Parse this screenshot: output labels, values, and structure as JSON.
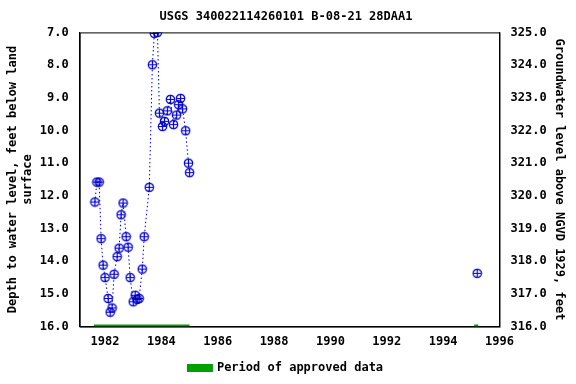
{
  "chart_data": {
    "type": "scatter",
    "title": "USGS 340022114260101 B-08-21 28DAA1",
    "x_label": "",
    "y_label": [
      "Depth to water level, feet below land",
      "surface"
    ],
    "y2_label": "Groundwater level above NGVD 1929, feet",
    "xlim": [
      1981.1,
      1996
    ],
    "xticks": [
      1982,
      1984,
      1986,
      1988,
      1990,
      1992,
      1994,
      1996
    ],
    "ylim": [
      16,
      7
    ],
    "yticks": [
      {
        "value": 7,
        "label": "7.0"
      },
      {
        "value": 8,
        "label": "8.0"
      },
      {
        "value": 9,
        "label": "9.0"
      },
      {
        "value": 10,
        "label": "10.0"
      },
      {
        "value": 11,
        "label": "11.0"
      },
      {
        "value": 12,
        "label": "12.0"
      },
      {
        "value": 13,
        "label": "13.0"
      },
      {
        "value": 14,
        "label": "14.0"
      },
      {
        "value": 15,
        "label": "15.0"
      },
      {
        "value": 16,
        "label": "16.0"
      }
    ],
    "y2lim": [
      316,
      325
    ],
    "y2ticks": [
      {
        "value": 316,
        "label": "316.0"
      },
      {
        "value": 317,
        "label": "317.0"
      },
      {
        "value": 318,
        "label": "318.0"
      },
      {
        "value": 319,
        "label": "319.0"
      },
      {
        "value": 320,
        "label": "320.0"
      },
      {
        "value": 321,
        "label": "321.0"
      },
      {
        "value": 322,
        "label": "322.0"
      },
      {
        "value": 323,
        "label": "323.0"
      },
      {
        "value": 324,
        "label": "324.0"
      },
      {
        "value": 325,
        "label": "325.0"
      }
    ],
    "grid": false,
    "legend": "bottom",
    "series": [
      {
        "color": "#0000cc",
        "marker": "circle_plus",
        "line_style": "dotted",
        "x": [
          1981.64,
          1981.71,
          1981.79,
          1981.86,
          1981.93,
          1982.0,
          1982.11,
          1982.18,
          1982.25,
          1982.32,
          1982.43,
          1982.5,
          1982.57,
          1982.64,
          1982.75,
          1982.82,
          1982.89,
          1983.0,
          1983.07,
          1983.14,
          1983.21,
          1983.32,
          1983.39,
          1983.57,
          1983.68,
          1983.75,
          1983.86,
          1983.93,
          1984.04,
          1984.11,
          1984.21,
          1984.32,
          1984.43,
          1984.54,
          1984.61,
          1984.68,
          1984.75,
          1984.86,
          1984.96,
          1985.0,
          1995.21
        ],
        "values": [
          12.19,
          11.58,
          11.58,
          13.31,
          14.12,
          14.5,
          15.14,
          15.56,
          15.43,
          14.4,
          13.86,
          13.6,
          12.58,
          12.22,
          13.25,
          13.57,
          14.5,
          15.24,
          15.04,
          15.17,
          15.14,
          14.24,
          13.25,
          11.74,
          7.99,
          7.03,
          7.0,
          9.47,
          9.88,
          9.72,
          9.4,
          9.05,
          9.82,
          9.53,
          9.21,
          9.02,
          9.34,
          10.01,
          11.0,
          11.29,
          14.37
        ]
      }
    ],
    "approved_periods": {
      "name": "Period of approved data",
      "color": "#00a000",
      "ranges": [
        [
          1981.6,
          1985.0
        ],
        [
          1995.1,
          1995.25
        ]
      ]
    }
  }
}
